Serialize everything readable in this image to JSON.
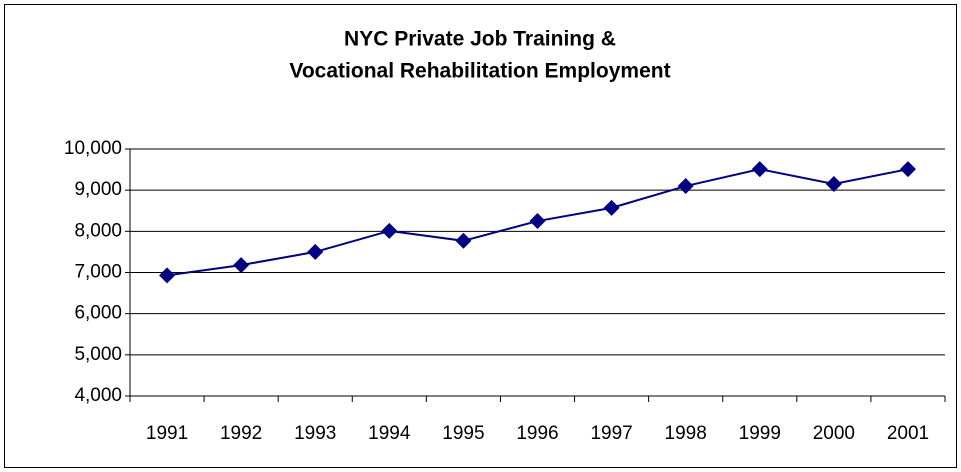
{
  "chart_data": {
    "type": "line",
    "title": [
      "NYC Private Job Training &",
      "Vocational Rehabilitation Employment"
    ],
    "categories": [
      "1991",
      "1992",
      "1993",
      "1994",
      "1995",
      "1996",
      "1997",
      "1998",
      "1999",
      "2000",
      "2001"
    ],
    "series": [
      {
        "color": "#000080",
        "values": [
          6930,
          7180,
          7500,
          8010,
          7770,
          8250,
          8570,
          9100,
          9510,
          9150,
          9510
        ]
      }
    ],
    "ylim": [
      4000,
      10000
    ],
    "yticks": [
      {
        "value": 4000,
        "label": "4,000"
      },
      {
        "value": 5000,
        "label": "5,000"
      },
      {
        "value": 6000,
        "label": "6,000"
      },
      {
        "value": 7000,
        "label": "7,000"
      },
      {
        "value": 8000,
        "label": "8,000"
      },
      {
        "value": 9000,
        "label": "9,000"
      },
      {
        "value": 10000,
        "label": "10,000"
      }
    ],
    "grid": true
  }
}
